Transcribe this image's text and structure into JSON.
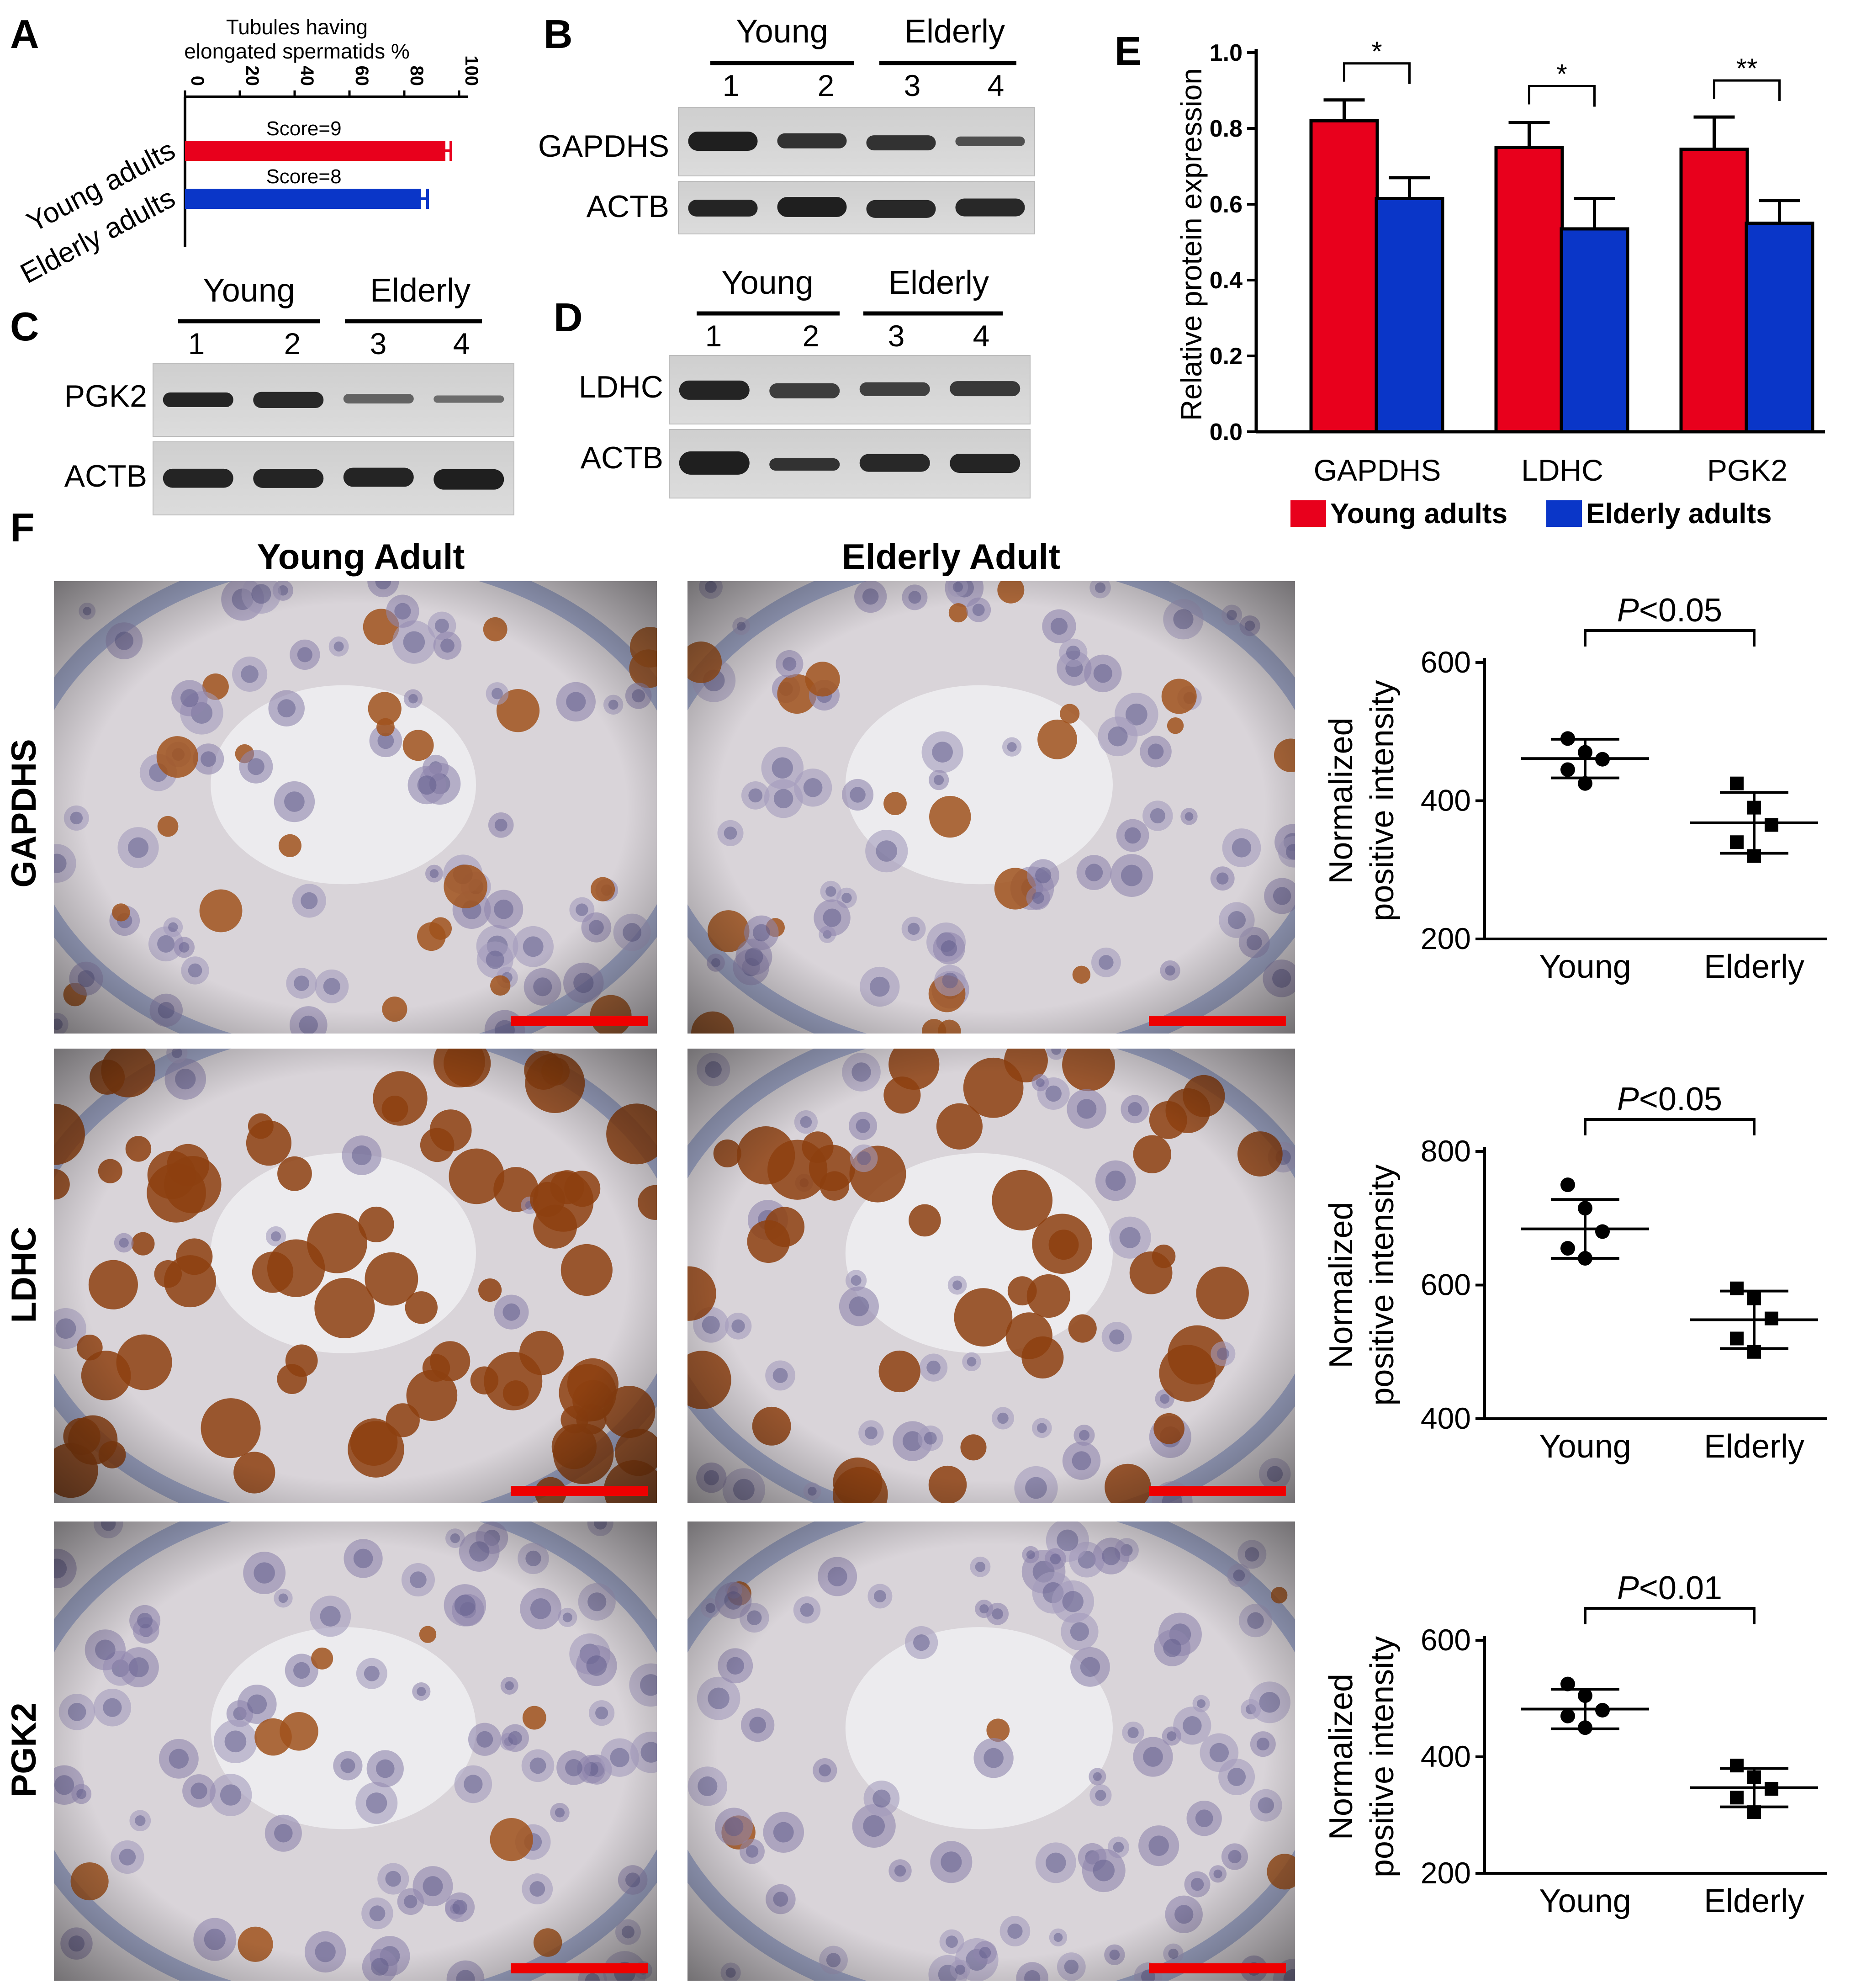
{
  "figure": {
    "panels": {
      "A": {
        "letter": "A",
        "title_line1": "Tubules having",
        "title_line2": "elongated spermatids %",
        "categories": [
          "Young adults",
          "Elderly adults"
        ],
        "scores": [
          "Score=9",
          "Score=8"
        ],
        "ticks": [
          "0",
          "20",
          "40",
          "60",
          "80",
          "100"
        ]
      },
      "B": {
        "letter": "B",
        "groups": [
          "Young",
          "Elderly"
        ],
        "lanes": [
          "1",
          "2",
          "3",
          "4"
        ],
        "rows": [
          "GAPDHS",
          "ACTB"
        ]
      },
      "C": {
        "letter": "C",
        "groups": [
          "Young",
          "Elderly"
        ],
        "lanes": [
          "1",
          "2",
          "3",
          "4"
        ],
        "rows": [
          "PGK2",
          "ACTB"
        ]
      },
      "D": {
        "letter": "D",
        "groups": [
          "Young",
          "Elderly"
        ],
        "lanes": [
          "1",
          "2",
          "3",
          "4"
        ],
        "rows": [
          "LDHC",
          "ACTB"
        ]
      },
      "E": {
        "letter": "E",
        "ylabel": "Relative protein expression",
        "ticks": [
          "0.0",
          "0.2",
          "0.4",
          "0.6",
          "0.8",
          "1.0"
        ],
        "categories": [
          "GAPDHS",
          "LDHC",
          "PGK2"
        ],
        "significance": [
          "*",
          "*",
          "**"
        ],
        "legend": [
          "Young adults",
          "Elderly adults"
        ]
      },
      "F": {
        "letter": "F",
        "col_titles": [
          "Young Adult",
          "Elderly Adult"
        ],
        "row_labels": [
          "GAPDHS",
          "LDHC",
          "PGK2"
        ],
        "plots": [
          {
            "ylabel1": "Normalized",
            "ylabel2": "positive intensity",
            "ticks": [
              "200",
              "400",
              "600"
            ],
            "xlabels": [
              "Young",
              "Elderly"
            ],
            "p_italic": "P",
            "p_rest": "<0.05"
          },
          {
            "ylabel1": "Normalized",
            "ylabel2": "positive intensity",
            "ticks": [
              "400",
              "600",
              "800"
            ],
            "xlabels": [
              "Young",
              "Elderly"
            ],
            "p_italic": "P",
            "p_rest": "<0.05"
          },
          {
            "ylabel1": "Normalized",
            "ylabel2": "positive intensity",
            "ticks": [
              "200",
              "400",
              "600"
            ],
            "xlabels": [
              "Young",
              "Elderly"
            ],
            "p_italic": "P",
            "p_rest": "<0.01"
          }
        ]
      }
    },
    "colors": {
      "young": "#e8001c",
      "elderly": "#0a36c8",
      "scale_bar": "#ee0000",
      "tissue_bg": "#d9d4d9",
      "stain_brown": "#a0521c",
      "stain_blue": "#6f7fb6"
    }
  },
  "chart_data": [
    {
      "type": "bar",
      "title": "Tubules having elongated spermatids %",
      "orientation": "horizontal",
      "categories": [
        "Young adults",
        "Elderly adults"
      ],
      "values": [
        95,
        86
      ],
      "errors": [
        2,
        2.5
      ],
      "xlim": [
        0,
        100
      ]
    },
    {
      "type": "bar",
      "categories": [
        "GAPDHS",
        "LDHC",
        "PGK2"
      ],
      "series": [
        {
          "name": "Young adults",
          "values": [
            0.82,
            0.75,
            0.745
          ],
          "errors": [
            0.055,
            0.065,
            0.085
          ]
        },
        {
          "name": "Elderly adults",
          "values": [
            0.615,
            0.535,
            0.55
          ],
          "errors": [
            0.055,
            0.08,
            0.06
          ]
        }
      ],
      "ylabel": "Relative protein expression",
      "ylim": [
        0,
        1.0
      ]
    },
    {
      "type": "scatter",
      "ylabel": "Normalized positive intensity",
      "categories": [
        "Young",
        "Elderly"
      ],
      "ylim": [
        200,
        600
      ],
      "series": [
        {
          "values": [
            490,
            470,
            460,
            445,
            425
          ],
          "mean": 461,
          "sd": 28
        },
        {
          "values": [
            425,
            390,
            365,
            340,
            320
          ],
          "mean": 368,
          "sd": 44
        }
      ]
    },
    {
      "type": "scatter",
      "ylabel": "Normalized positive intensity",
      "categories": [
        "Young",
        "Elderly"
      ],
      "ylim": [
        400,
        800
      ],
      "series": [
        {
          "values": [
            750,
            715,
            680,
            655,
            640
          ],
          "mean": 684,
          "sd": 44
        },
        {
          "values": [
            595,
            580,
            550,
            520,
            500
          ],
          "mean": 548,
          "sd": 43
        }
      ]
    },
    {
      "type": "scatter",
      "ylabel": "Normalized positive intensity",
      "categories": [
        "Young",
        "Elderly"
      ],
      "ylim": [
        200,
        600
      ],
      "series": [
        {
          "values": [
            525,
            505,
            480,
            470,
            450
          ],
          "mean": 482,
          "sd": 34
        },
        {
          "values": [
            385,
            365,
            345,
            330,
            305
          ],
          "mean": 347,
          "sd": 33
        }
      ]
    }
  ]
}
